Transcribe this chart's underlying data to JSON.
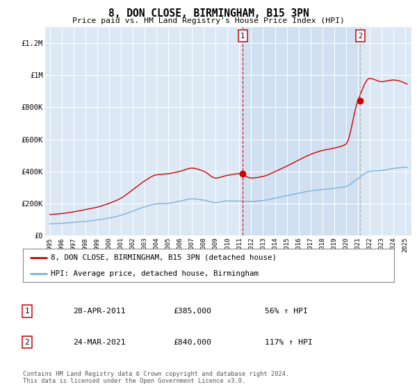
{
  "title": "8, DON CLOSE, BIRMINGHAM, B15 3PN",
  "subtitle": "Price paid vs. HM Land Registry's House Price Index (HPI)",
  "background_color": "#ffffff",
  "plot_bg_color": "#dce9f5",
  "red_line_label": "8, DON CLOSE, BIRMINGHAM, B15 3PN (detached house)",
  "blue_line_label": "HPI: Average price, detached house, Birmingham",
  "marker1_date": "28-APR-2011",
  "marker1_value": 385000,
  "marker1_pct": "56% ↑ HPI",
  "marker2_date": "24-MAR-2021",
  "marker2_value": 840000,
  "marker2_pct": "117% ↑ HPI",
  "footer": "Contains HM Land Registry data © Crown copyright and database right 2024.\nThis data is licensed under the Open Government Licence v3.0.",
  "ylim": [
    0,
    1300000
  ],
  "yticks": [
    0,
    200000,
    400000,
    600000,
    800000,
    1000000,
    1200000
  ],
  "ytick_labels": [
    "£0",
    "£200K",
    "£400K",
    "£600K",
    "£800K",
    "£1M",
    "£1.2M"
  ],
  "hpi_color": "#7ab0dd",
  "price_color": "#cc0000",
  "vline1_color": "#cc0000",
  "vline2_color": "#aaaaaa",
  "shade_color": "#dce9f5",
  "marker1_x": 2011.29,
  "marker2_x": 2021.21
}
